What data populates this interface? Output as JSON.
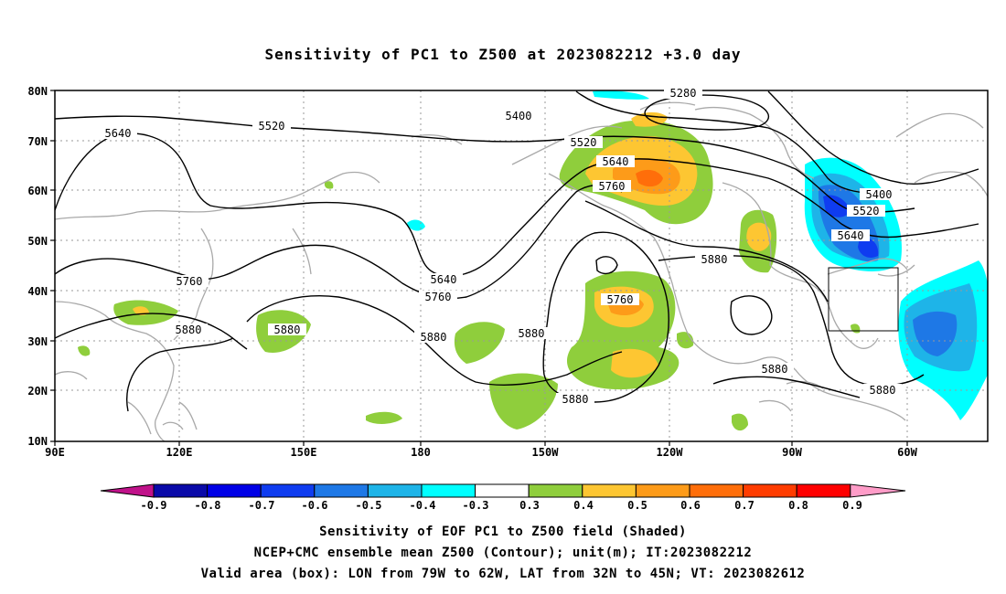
{
  "title": "Sensitivity of PC1 to Z500 at 2023082212 +3.0 day",
  "lat_labels": [
    "80N",
    "70N",
    "60N",
    "50N",
    "40N",
    "30N",
    "20N",
    "10N"
  ],
  "lon_labels": [
    "90E",
    "120E",
    "150E",
    "180",
    "150W",
    "120W",
    "90W",
    "60W"
  ],
  "contour_labels": [
    "5280",
    "5400",
    "5520",
    "5640",
    "5520",
    "5640",
    "5760",
    "5400",
    "5520",
    "5640",
    "5760",
    "5880",
    "5640",
    "5760",
    "5760",
    "5880",
    "5880",
    "5880",
    "5880",
    "5880",
    "5880",
    "5880"
  ],
  "colorbar": {
    "labels": [
      "-0.9",
      "-0.8",
      "-0.7",
      "-0.6",
      "-0.5",
      "-0.4",
      "-0.3",
      "0.3",
      "0.4",
      "0.5",
      "0.6",
      "0.7",
      "0.8",
      "0.9"
    ],
    "colors": {
      "neg_tip": "#c0128a",
      "neg": [
        "#0a0aa8",
        "#0000e6",
        "#0f3cf0",
        "#1e78e6",
        "#1eb4e8",
        "#00ffff"
      ],
      "neutral": "#ffffff",
      "pos": [
        "#8fce3c",
        "#fdc632",
        "#fd9b19",
        "#ff6e0a",
        "#ff3c00",
        "#ff0000"
      ],
      "pos_tip": "#ff9cc8"
    }
  },
  "captions": {
    "line1": "Sensitivity of EOF PC1 to Z500 field (Shaded)",
    "line2": "NCEP+CMC ensemble mean Z500 (Contour); unit(m); IT:2023082212",
    "line3": "Valid area (box): LON from 79W to 62W, LAT from 32N to 45N; VT: 2023082612"
  },
  "valid_box": {
    "lon": [
      "79W",
      "62W"
    ],
    "lat": [
      "32N",
      "45N"
    ]
  }
}
